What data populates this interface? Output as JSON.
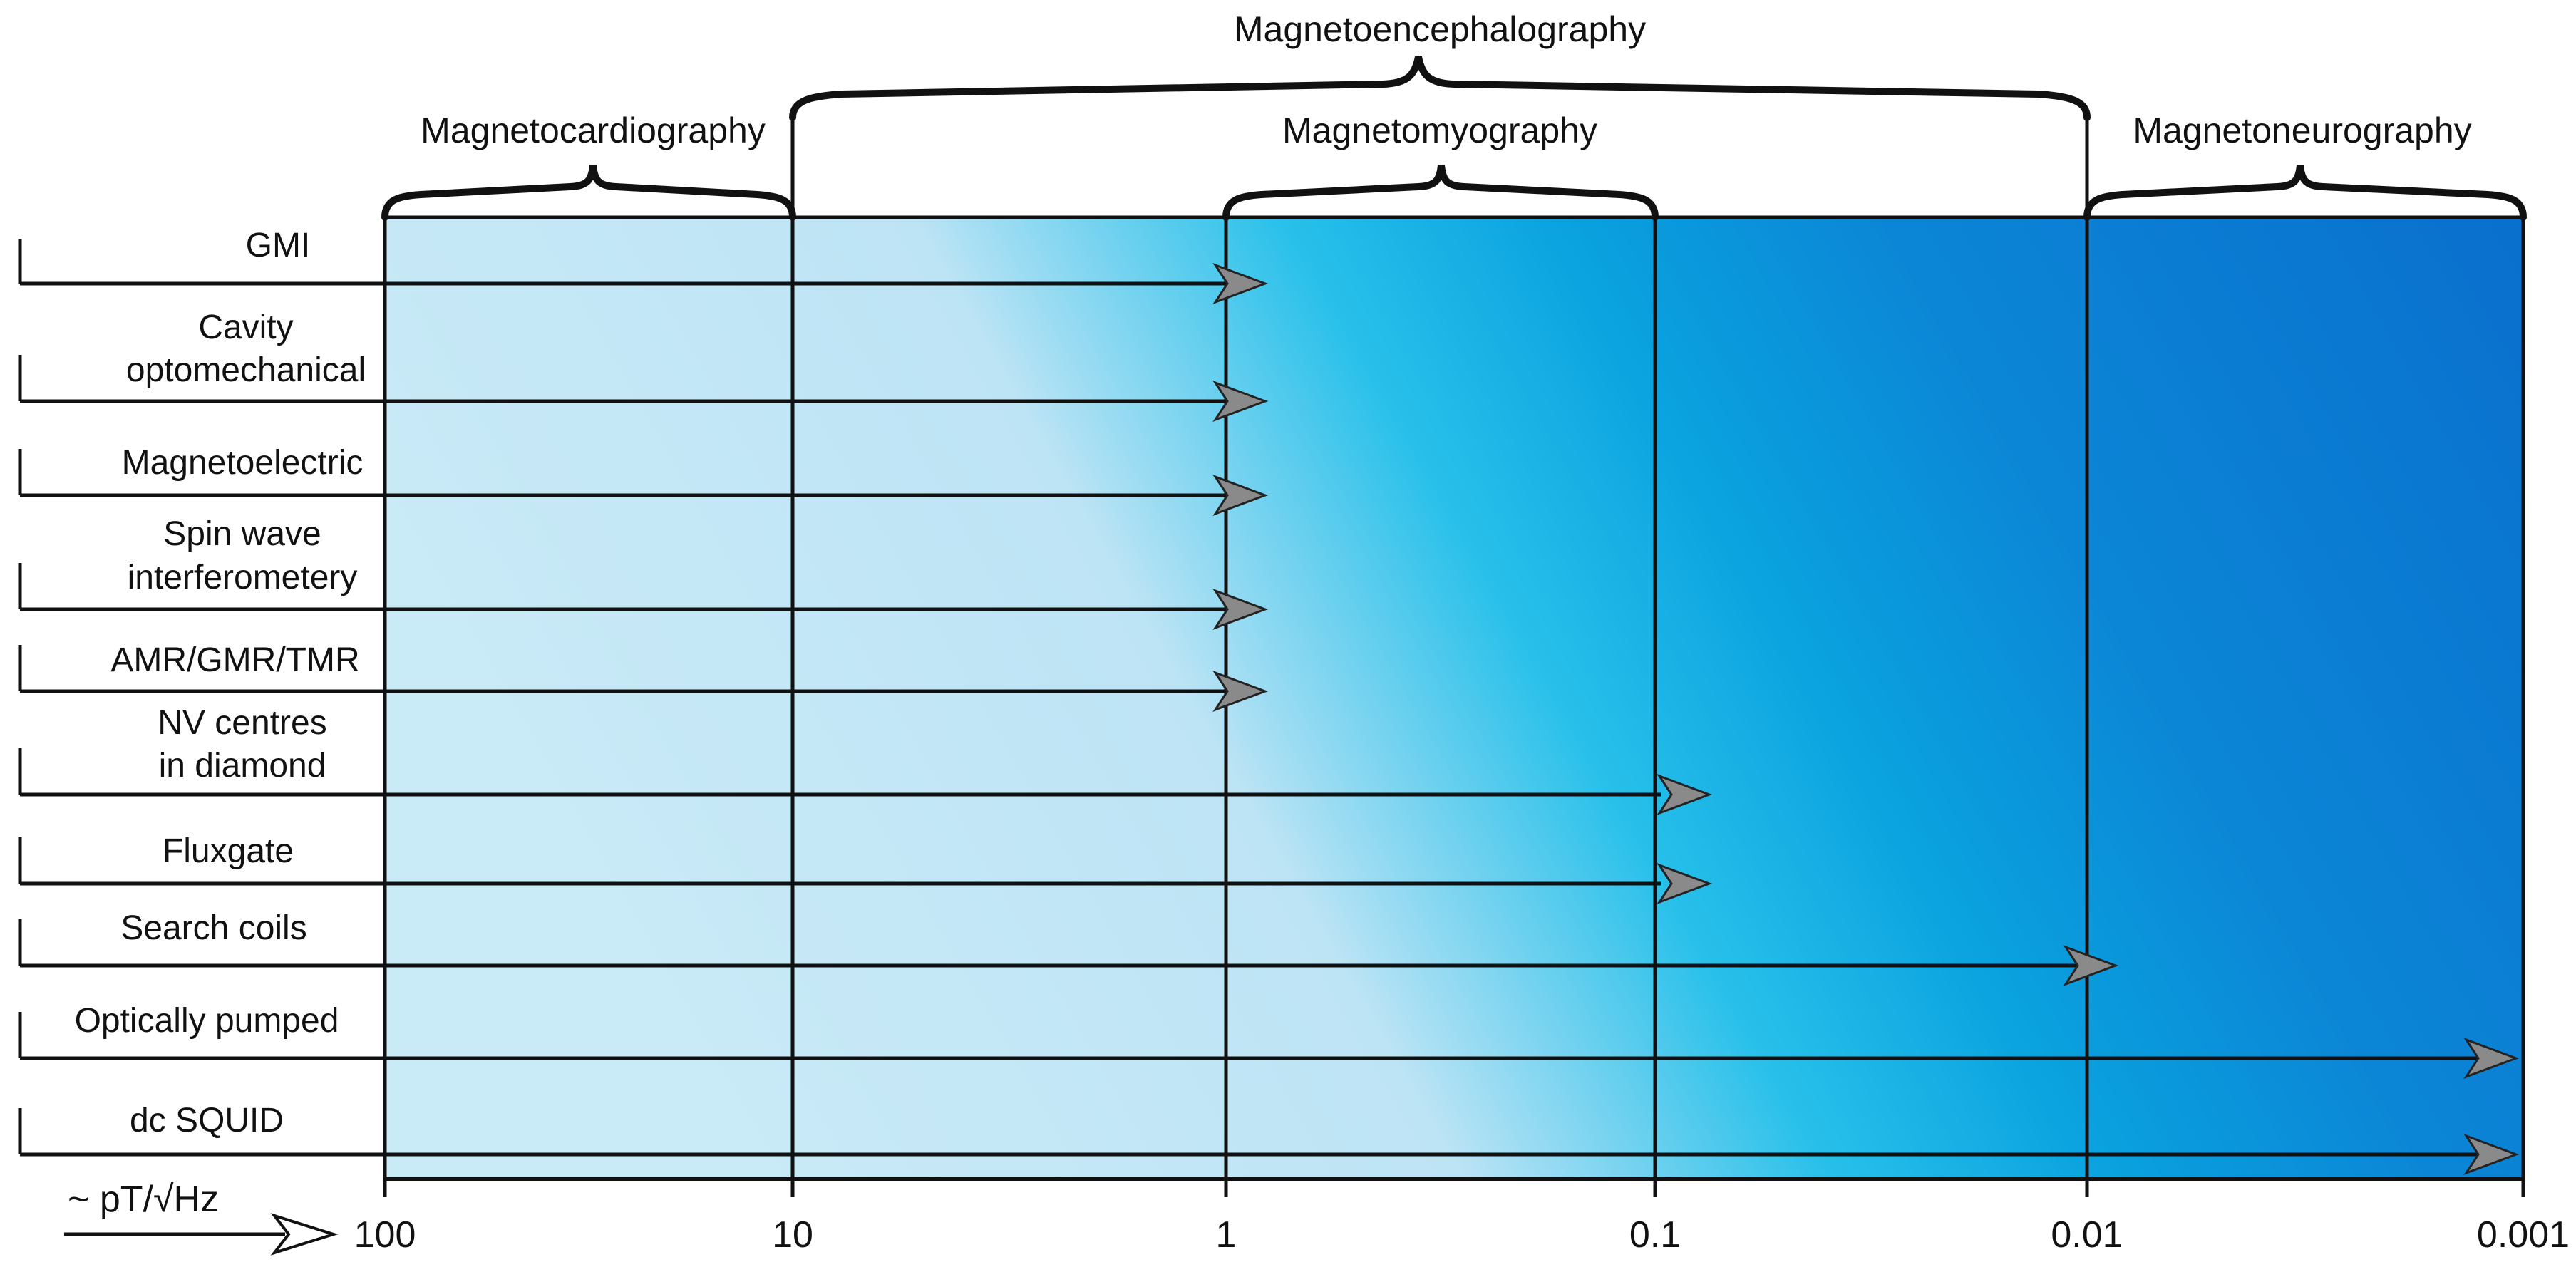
{
  "diagram": {
    "axis_unit_label": "~ pT/√Hz",
    "ticks": [
      "100",
      "10",
      "1",
      "0.1",
      "0.01",
      "0.001"
    ],
    "applications": [
      {
        "label": "Magnetoencephalography",
        "from": "10",
        "to": "0.01"
      },
      {
        "label": "Magnetocardiography",
        "from": "100",
        "to": "10"
      },
      {
        "label": "Magnetomyography",
        "from": "1",
        "to": "0.1"
      },
      {
        "label": "Magnetoneurography",
        "from": "0.01",
        "to": "0.001"
      }
    ],
    "sensors": [
      {
        "lines": [
          "GMI"
        ],
        "reaches": "1"
      },
      {
        "lines": [
          "Cavity",
          "optomechanical"
        ],
        "reaches": "1"
      },
      {
        "lines": [
          "Magnetoelectric"
        ],
        "reaches": "1"
      },
      {
        "lines": [
          "Spin wave",
          "interferometery"
        ],
        "reaches": "1"
      },
      {
        "lines": [
          "AMR/GMR/TMR"
        ],
        "reaches": "1"
      },
      {
        "lines": [
          "NV centres",
          "in diamond"
        ],
        "reaches": "0.1"
      },
      {
        "lines": [
          "Fluxgate"
        ],
        "reaches": "0.1"
      },
      {
        "lines": [
          "Search coils"
        ],
        "reaches": "0.01"
      },
      {
        "lines": [
          "Optically pumped"
        ],
        "reaches": "0.001"
      },
      {
        "lines": [
          "dc SQUID"
        ],
        "reaches": "0.001"
      }
    ],
    "colors": {
      "light_blue": "#c4e8f6",
      "cyan": "#1ab8e6",
      "deep_blue": "#0a78d2",
      "line": "#111111",
      "arrowhead": "#8a8a8a"
    }
  }
}
